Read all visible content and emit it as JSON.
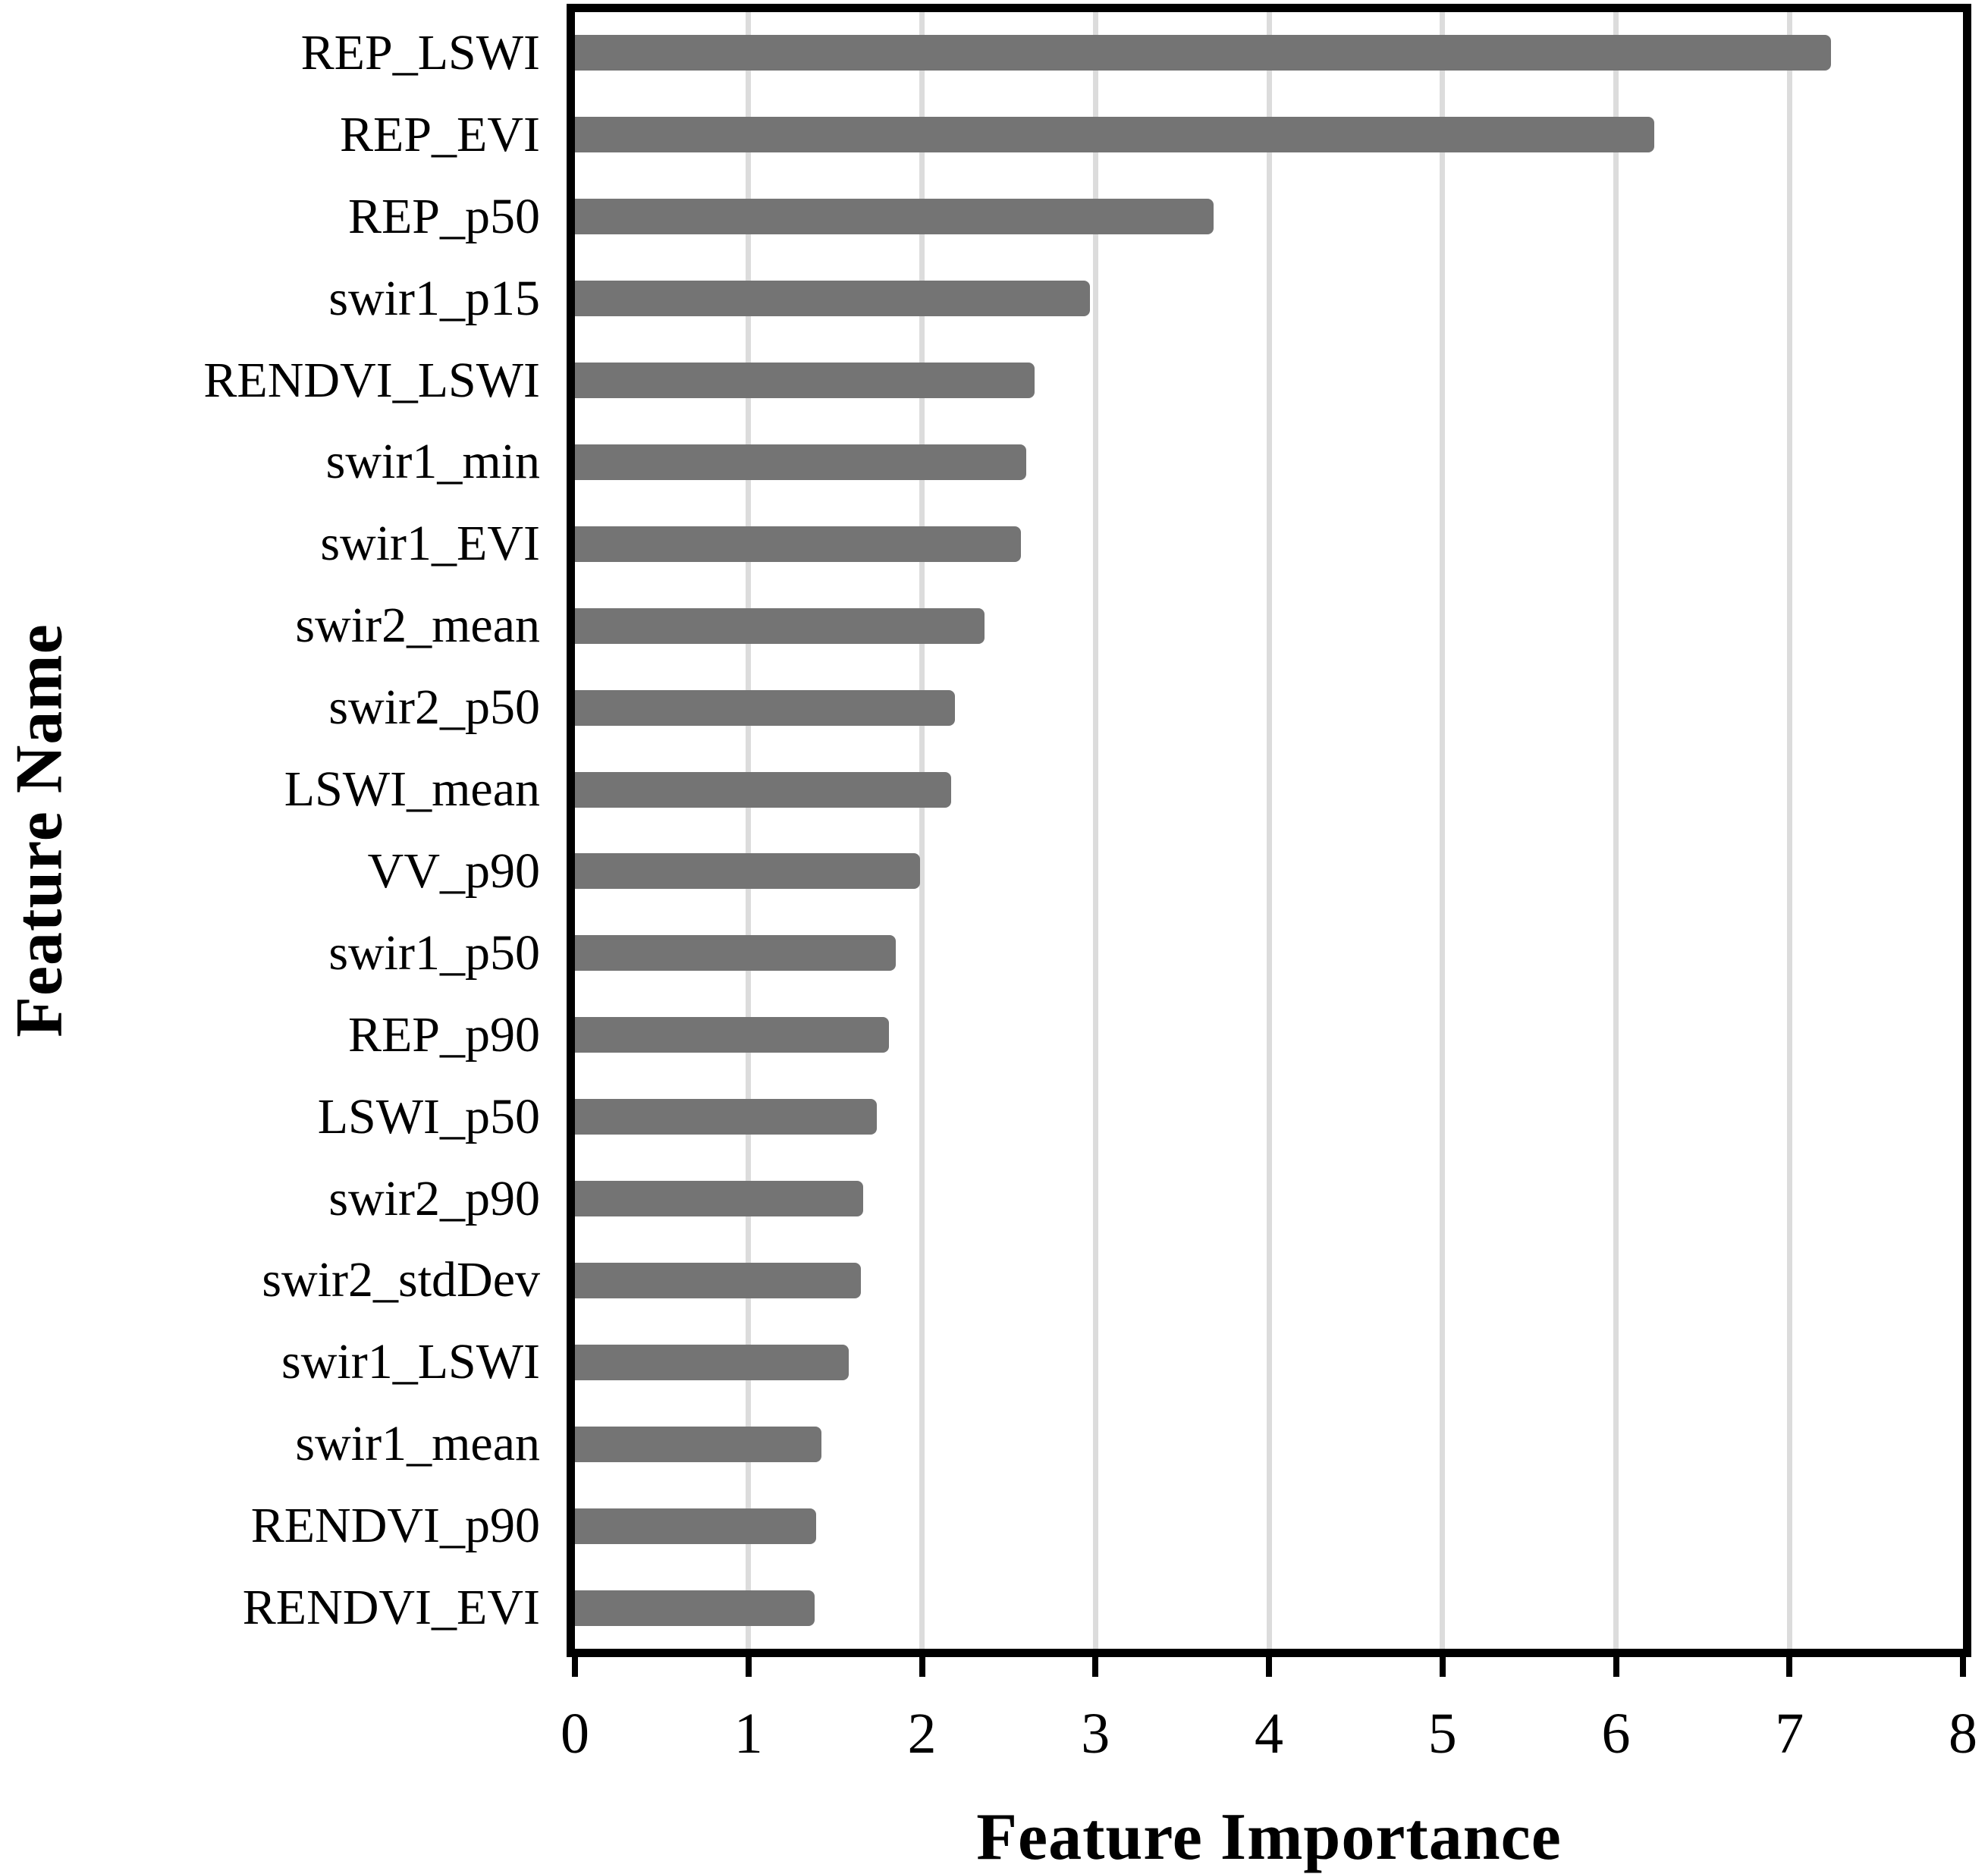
{
  "chart_data": {
    "type": "bar",
    "orientation": "horizontal",
    "title": "",
    "xlabel": "Feature Importance",
    "ylabel": "Feature Name",
    "xlim": [
      0,
      8
    ],
    "xticks": [
      "0",
      "1",
      "2",
      "3",
      "4",
      "5",
      "6",
      "7",
      "8"
    ],
    "grid": "vertical gridlines at integer ticks, behind bars",
    "legend": "none",
    "bar_color": "#747474",
    "gridline_color": "#dcdcdc",
    "frame_color": "#000000",
    "categories": [
      "REP_LSWI",
      "REP_EVI",
      "REP_p50",
      "swir1_p15",
      "RENDVI_LSWI",
      "swir1_min",
      "swir1_EVI",
      "swir2_mean",
      "swir2_p50",
      "LSWI_mean",
      "VV_p90",
      "swir1_p50",
      "REP_p90",
      "LSWI_p50",
      "swir2_p90",
      "swir2_stdDev",
      "swir1_LSWI",
      "swir1_mean",
      "RENDVI_p90",
      "RENDVI_EVI"
    ],
    "values": [
      7.24,
      6.22,
      3.68,
      2.97,
      2.65,
      2.6,
      2.57,
      2.36,
      2.19,
      2.17,
      1.99,
      1.85,
      1.81,
      1.74,
      1.66,
      1.65,
      1.58,
      1.42,
      1.39,
      1.38
    ]
  }
}
